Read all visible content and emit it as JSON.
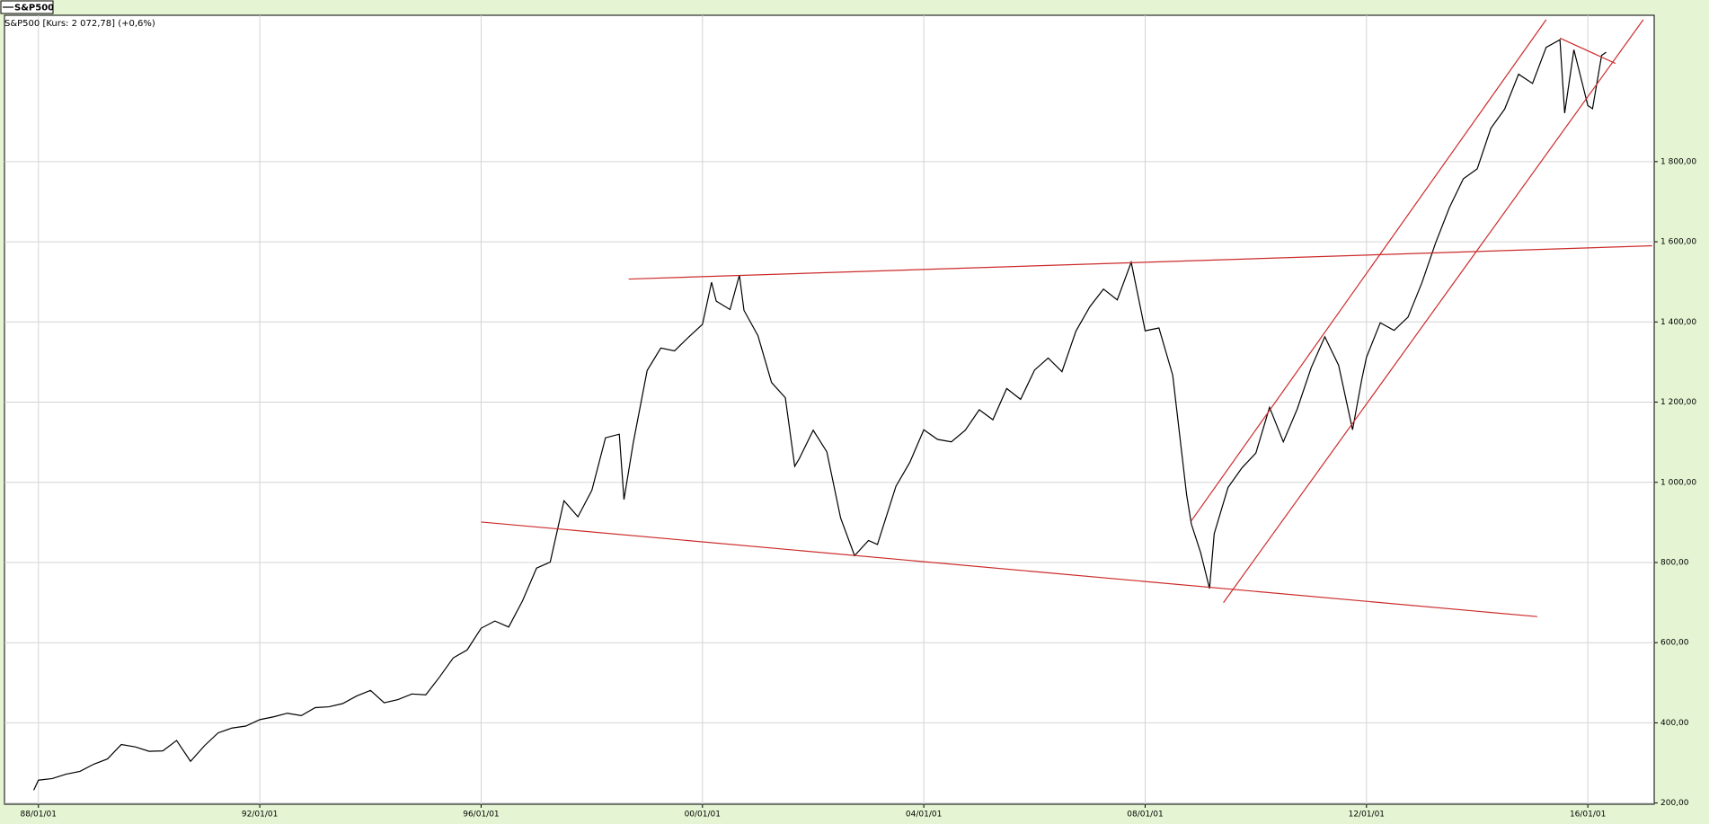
{
  "chart_data": {
    "type": "line",
    "title": "S&P500 [Kurs: 2 072,78] (+0,6%)",
    "legend": "top-left",
    "grid": true,
    "xlim": [
      "1987-05-22",
      "2017-03-14"
    ],
    "ylim": [
      197,
      2165
    ],
    "xticks": [
      {
        "value": "1988-01-01",
        "label": "88/01/01"
      },
      {
        "value": "1992-01-01",
        "label": "92/01/01"
      },
      {
        "value": "1996-01-01",
        "label": "96/01/01"
      },
      {
        "value": "2000-01-01",
        "label": "00/01/01"
      },
      {
        "value": "2004-01-01",
        "label": "04/01/01"
      },
      {
        "value": "2008-01-01",
        "label": "08/01/01"
      },
      {
        "value": "2012-01-01",
        "label": "12/01/01"
      },
      {
        "value": "2016-01-01",
        "label": "16/01/01"
      }
    ],
    "yticks": [
      {
        "value": 200,
        "label": "200,00"
      },
      {
        "value": 400,
        "label": "400,00"
      },
      {
        "value": 600,
        "label": "600,00"
      },
      {
        "value": 800,
        "label": "800,00"
      },
      {
        "value": 1000,
        "label": "1 000,00"
      },
      {
        "value": 1200,
        "label": "1 200,00"
      },
      {
        "value": 1400,
        "label": "1 400,00"
      },
      {
        "value": 1600,
        "label": "1 600,00"
      },
      {
        "value": 1800,
        "label": "1 800,00"
      }
    ],
    "x": [
      "1987-12-01",
      "1988-01-01",
      "1988-04-01",
      "1988-07-01",
      "1988-10-01",
      "1989-01-01",
      "1989-04-01",
      "1989-07-01",
      "1989-10-01",
      "1990-01-01",
      "1990-04-01",
      "1990-07-01",
      "1990-10-01",
      "1991-01-01",
      "1991-04-01",
      "1991-07-01",
      "1991-10-01",
      "1992-01-01",
      "1992-04-01",
      "1992-07-01",
      "1992-10-01",
      "1993-01-01",
      "1993-04-01",
      "1993-07-01",
      "1993-10-01",
      "1994-01-01",
      "1994-04-01",
      "1994-07-01",
      "1994-10-01",
      "1995-01-01",
      "1995-04-01",
      "1995-07-01",
      "1995-10-01",
      "1996-01-01",
      "1996-04-01",
      "1996-07-01",
      "1996-10-01",
      "1997-01-01",
      "1997-04-01",
      "1997-07-01",
      "1997-10-01",
      "1998-01-01",
      "1998-04-01",
      "1998-07-01",
      "1998-08-01",
      "1998-10-01",
      "1999-01-01",
      "1999-04-01",
      "1999-07-01",
      "1999-10-01",
      "2000-01-01",
      "2000-03-01",
      "2000-04-01",
      "2000-07-01",
      "2000-09-01",
      "2000-10-01",
      "2001-01-01",
      "2001-04-01",
      "2001-07-01",
      "2001-09-01",
      "2001-10-01",
      "2002-01-01",
      "2002-04-01",
      "2002-07-01",
      "2002-10-01",
      "2003-01-01",
      "2003-03-01",
      "2003-07-01",
      "2003-10-01",
      "2004-01-01",
      "2004-04-01",
      "2004-07-01",
      "2004-10-01",
      "2005-01-01",
      "2005-04-01",
      "2005-07-01",
      "2005-10-01",
      "2006-01-01",
      "2006-04-01",
      "2006-07-01",
      "2006-10-01",
      "2007-01-01",
      "2007-04-01",
      "2007-07-01",
      "2007-10-01",
      "2008-01-01",
      "2008-04-01",
      "2008-07-01",
      "2008-10-01",
      "2008-11-01",
      "2009-01-01",
      "2009-03-01",
      "2009-04-01",
      "2009-07-01",
      "2009-10-01",
      "2010-01-01",
      "2010-04-01",
      "2010-07-01",
      "2010-10-01",
      "2011-01-01",
      "2011-04-01",
      "2011-07-01",
      "2011-10-01",
      "2011-12-01",
      "2012-01-01",
      "2012-04-01",
      "2012-07-01",
      "2012-10-01",
      "2013-01-01",
      "2013-04-01",
      "2013-07-01",
      "2013-10-01",
      "2014-01-01",
      "2014-04-01",
      "2014-07-01",
      "2014-10-01",
      "2015-01-01",
      "2015-04-01",
      "2015-07-01",
      "2015-08-01",
      "2015-10-01",
      "2016-01-01",
      "2016-02-01",
      "2016-04-01",
      "2016-05-01"
    ],
    "series": [
      {
        "name": "S&P500",
        "color": "#000000",
        "values": [
          232,
          257,
          261,
          272,
          279,
          297,
          310,
          346,
          340,
          329,
          330,
          356,
          304,
          343,
          375,
          387,
          392,
          408,
          415,
          424,
          418,
          438,
          440,
          448,
          467,
          481,
          450,
          458,
          472,
          470,
          514,
          562,
          582,
          636,
          654,
          639,
          705,
          786,
          801,
          954,
          914,
          980,
          1111,
          1120,
          957,
          1098,
          1279,
          1335,
          1328,
          1362,
          1394,
          1499,
          1452,
          1431,
          1517,
          1429,
          1366,
          1249,
          1211,
          1040,
          1059,
          1130,
          1076,
          911,
          817,
          855,
          845,
          990,
          1050,
          1131,
          1107,
          1101,
          1130,
          1181,
          1156,
          1234,
          1207,
          1280,
          1310,
          1276,
          1377,
          1438,
          1482,
          1455,
          1549,
          1378,
          1385,
          1267,
          968,
          896,
          825,
          735,
          872,
          987,
          1036,
          1073,
          1187,
          1101,
          1183,
          1286,
          1363,
          1292,
          1131,
          1257,
          1312,
          1398,
          1379,
          1412,
          1498,
          1597,
          1685,
          1757,
          1782,
          1883,
          1931,
          2018,
          1995,
          2085,
          2104,
          1921,
          2079,
          1940,
          1932,
          2065,
          2072.78
        ]
      }
    ],
    "trendlines": [
      {
        "color": "#cc2b2b",
        "x": [
          "1998-09-01",
          "2017-03-01"
        ],
        "values": [
          1507,
          1590
        ]
      },
      {
        "color": "#cc2b2b",
        "x": [
          "1996-01-01",
          "2015-02-01"
        ],
        "values": [
          901,
          665
        ]
      },
      {
        "color": "#cc2b2b",
        "x": [
          "2009-06-01",
          "2017-01-01"
        ],
        "values": [
          700,
          2154
        ]
      },
      {
        "color": "#cc2b2b",
        "x": [
          "2008-11-01",
          "2015-04-01"
        ],
        "values": [
          904,
          2154
        ]
      },
      {
        "color": "#cc2b2b",
        "x": [
          "2015-07-01",
          "2016-07-01"
        ],
        "values": [
          2108,
          2045
        ]
      }
    ]
  }
}
